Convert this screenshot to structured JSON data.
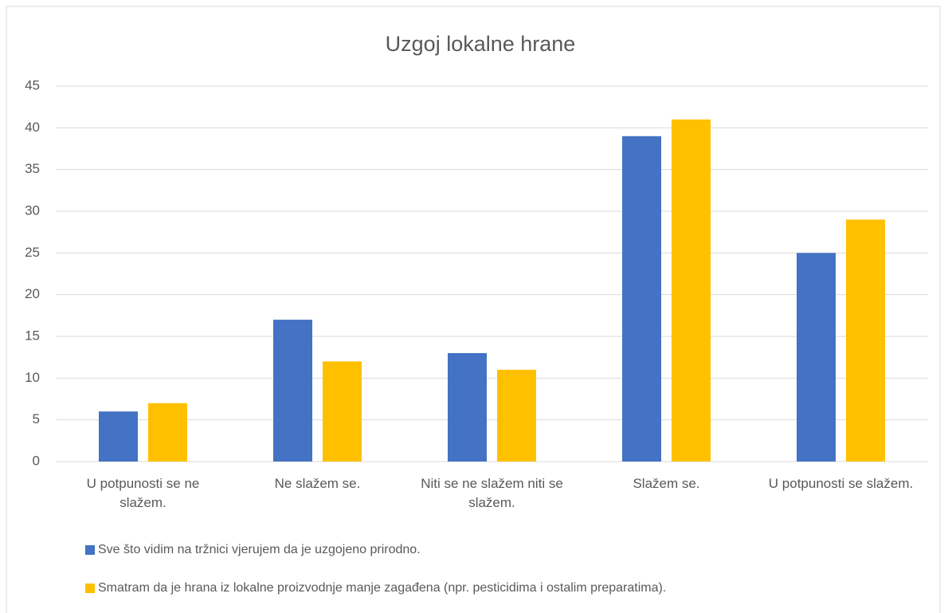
{
  "chart_data": {
    "type": "bar",
    "title": "Uzgoj lokalne hrane",
    "categories": [
      "U potpunosti se ne slažem.",
      "Ne slažem se.",
      "Niti se ne slažem niti se slažem.",
      "Slažem se.",
      "U potpunosti se slažem."
    ],
    "series": [
      {
        "name": "Sve što vidim na tržnici vjerujem da je uzgojeno prirodno.",
        "color": "#4472c4",
        "values": [
          6,
          17,
          13,
          39,
          25
        ]
      },
      {
        "name": "Smatram da je hrana iz lokalne proizvodnje manje zagađena (npr. pesticidima i ostalim preparatima).",
        "color": "#ffc000",
        "values": [
          7,
          12,
          11,
          41,
          29
        ]
      }
    ],
    "ylim": [
      0,
      45
    ],
    "yticks": [
      0,
      5,
      10,
      15,
      20,
      25,
      30,
      35,
      40,
      45
    ],
    "grid": true,
    "legend": "bottom"
  }
}
